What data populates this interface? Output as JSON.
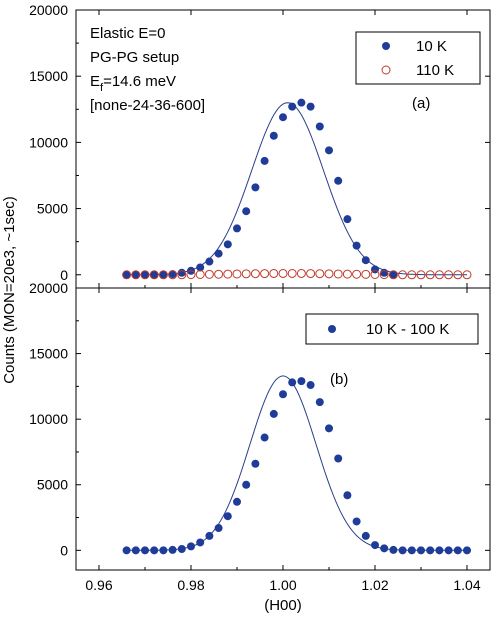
{
  "chart_data": [
    {
      "panel": "(a)",
      "type": "scatter",
      "ylabel": "Counts (MON=20e3, ~1sec)",
      "xlabel": "",
      "xlim": [
        0.955,
        1.045
      ],
      "ylim": [
        -1000,
        20000
      ],
      "xticks": [
        0.96,
        0.98,
        1.0,
        1.02,
        1.04
      ],
      "yticks": [
        0,
        5000,
        10000,
        15000,
        20000
      ],
      "annotations": [
        "Elastic E=0",
        "PG-PG setup",
        {
          "text": "E",
          "sub": "f",
          "suffix": "=14.6 meV"
        },
        "[none-24-36-600]"
      ],
      "panel_label": "(a)",
      "legend_placement": "top-right",
      "series": [
        {
          "name": "10 K",
          "marker": "filled-circle",
          "color": "#1f3c99",
          "x": [
            0.966,
            0.968,
            0.97,
            0.972,
            0.974,
            0.976,
            0.978,
            0.98,
            0.982,
            0.984,
            0.986,
            0.988,
            0.99,
            0.992,
            0.994,
            0.996,
            0.998,
            1.0,
            1.002,
            1.004,
            1.006,
            1.008,
            1.01,
            1.012,
            1.014,
            1.016,
            1.018,
            1.02,
            1.022,
            1.024
          ],
          "y": [
            0,
            0,
            0,
            0,
            20,
            50,
            150,
            300,
            550,
            1000,
            1600,
            2300,
            3500,
            4800,
            6600,
            8600,
            10500,
            11900,
            12700,
            13000,
            12700,
            11200,
            9400,
            7100,
            4200,
            2200,
            1100,
            400,
            150,
            30
          ]
        },
        {
          "name": "110 K",
          "marker": "open-circle",
          "color": "#c0392b",
          "x": [
            0.966,
            0.968,
            0.97,
            0.972,
            0.974,
            0.976,
            0.978,
            0.98,
            0.982,
            0.984,
            0.986,
            0.988,
            0.99,
            0.992,
            0.994,
            0.996,
            0.998,
            1.0,
            1.002,
            1.004,
            1.006,
            1.008,
            1.01,
            1.012,
            1.014,
            1.016,
            1.018,
            1.02,
            1.022,
            1.024,
            1.026,
            1.028,
            1.03,
            1.032,
            1.034,
            1.036,
            1.038,
            1.04
          ],
          "y": [
            0,
            0,
            0,
            0,
            0,
            0,
            0,
            10,
            20,
            30,
            40,
            50,
            60,
            70,
            80,
            90,
            100,
            100,
            100,
            100,
            90,
            80,
            70,
            60,
            50,
            40,
            30,
            20,
            10,
            0,
            0,
            0,
            0,
            0,
            0,
            0,
            0,
            0
          ]
        }
      ],
      "fit_line": {
        "color": "#2b3f8a",
        "amplitude": 13000,
        "center": 1.001,
        "sigma": 0.0078
      }
    },
    {
      "panel": "(b)",
      "type": "scatter",
      "xlabel": "(H00)",
      "xlim": [
        0.955,
        1.045
      ],
      "ylim": [
        -1500,
        20000
      ],
      "xticks": [
        0.96,
        0.98,
        1.0,
        1.02,
        1.04
      ],
      "xtick_labels": [
        "0.96",
        "0.98",
        "1.00",
        "1.02",
        "1.04"
      ],
      "yticks": [
        0,
        5000,
        10000,
        15000,
        20000
      ],
      "panel_label": "(b)",
      "legend_placement": "top-right",
      "series": [
        {
          "name": "10 K - 100 K",
          "marker": "filled-circle",
          "color": "#1f3c99",
          "x": [
            0.966,
            0.968,
            0.97,
            0.972,
            0.974,
            0.976,
            0.978,
            0.98,
            0.982,
            0.984,
            0.986,
            0.988,
            0.99,
            0.992,
            0.994,
            0.996,
            0.998,
            1.0,
            1.002,
            1.004,
            1.006,
            1.008,
            1.01,
            1.012,
            1.014,
            1.016,
            1.018,
            1.02,
            1.022,
            1.024,
            1.026,
            1.028,
            1.03,
            1.032,
            1.034,
            1.036,
            1.038,
            1.04
          ],
          "y": [
            0,
            0,
            0,
            0,
            0,
            30,
            100,
            300,
            600,
            1100,
            1700,
            2600,
            3700,
            5000,
            6600,
            8600,
            10400,
            11900,
            12800,
            12900,
            12600,
            11300,
            9300,
            7000,
            4200,
            2200,
            1100,
            400,
            150,
            30,
            0,
            0,
            0,
            0,
            0,
            0,
            0,
            0
          ]
        }
      ],
      "fit_line": {
        "color": "#2b3f8a",
        "amplitude": 13300,
        "center": 1.0,
        "sigma": 0.0072
      }
    }
  ]
}
